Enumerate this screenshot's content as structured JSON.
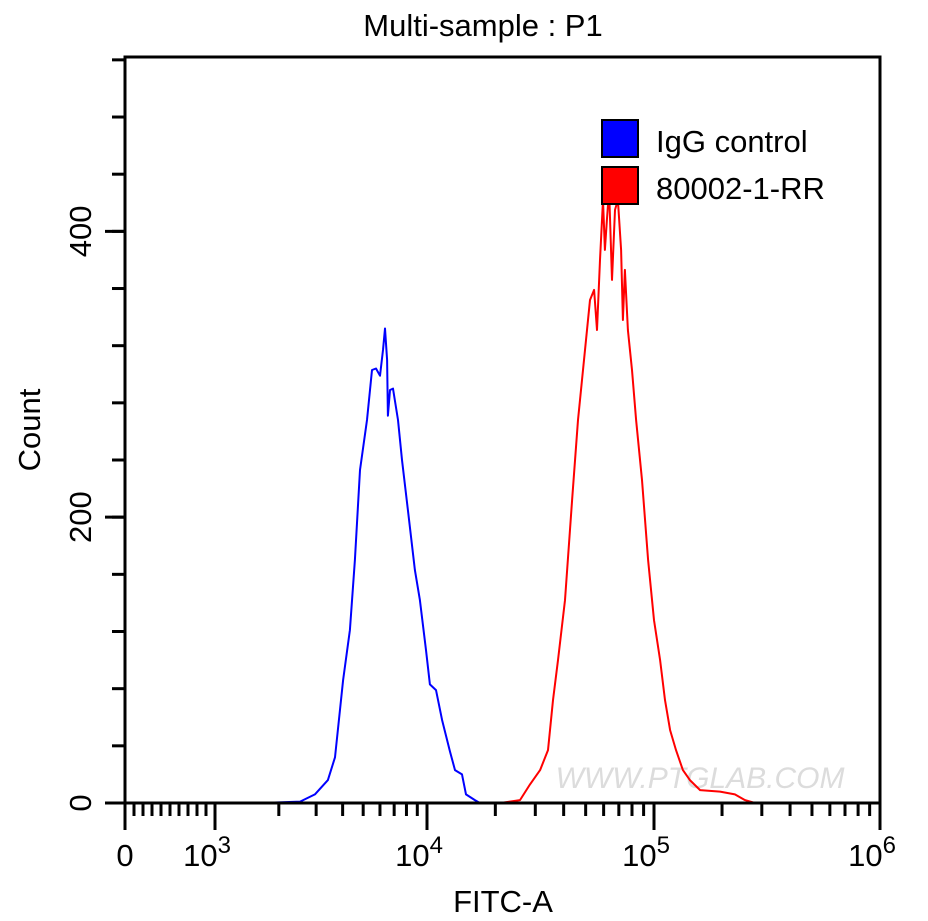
{
  "chart_data": {
    "type": "line",
    "title": "Multi-sample : P1",
    "xlabel": "FITC-A",
    "ylabel": "Count",
    "x_scale": "biexponential (log decades, linear near 0)",
    "xlim": [
      0,
      1000000
    ],
    "ylim": [
      0,
      522
    ],
    "x_ticks": [
      {
        "value": 0,
        "label": "0",
        "sup": ""
      },
      {
        "value": 1000,
        "label": "10",
        "sup": "3"
      },
      {
        "value": 10000,
        "label": "10",
        "sup": "4"
      },
      {
        "value": 100000,
        "label": "10",
        "sup": "5"
      },
      {
        "value": 1000000,
        "label": "10",
        "sup": "6"
      }
    ],
    "y_ticks": [
      {
        "value": 0,
        "label": "0"
      },
      {
        "value": 200,
        "label": "200"
      },
      {
        "value": 400,
        "label": "400"
      }
    ],
    "grid": false,
    "legend_position": "top-right",
    "watermark": "WWW.PTGLAB.COM",
    "series": [
      {
        "name": "IgG control",
        "color": "#0000ff",
        "x": [
          1630,
          2520,
          2960,
          3410,
          3680,
          4020,
          4330,
          4570,
          4830,
          5210,
          5500,
          5750,
          6000,
          6200,
          6340,
          6480,
          6540,
          6690,
          6910,
          7300,
          7620,
          8130,
          8770,
          9260,
          9890,
          10300,
          10960,
          11650,
          12630,
          13280,
          14260,
          14850,
          16260,
          17110
        ],
        "y": [
          0,
          1,
          6,
          16,
          32,
          86,
          121,
          170,
          233,
          268,
          303,
          304,
          299,
          317,
          332,
          310,
          271,
          289,
          290,
          268,
          240,
          205,
          163,
          142,
          107,
          83,
          79,
          58,
          36,
          23,
          20,
          6,
          2,
          0
        ]
      },
      {
        "name": "80002-1-RR",
        "color": "#ff0000",
        "x": [
          20990,
          25690,
          28420,
          31480,
          34120,
          35890,
          37770,
          40550,
          43550,
          46260,
          49170,
          52250,
          54440,
          56110,
          57840,
          59610,
          60800,
          62040,
          63390,
          65310,
          67300,
          69340,
          71610,
          72950,
          74470,
          76740,
          79980,
          83370,
          88510,
          94190,
          100000,
          106400,
          111900,
          117800,
          125100,
          134300,
          144200,
          159900,
          196000,
          228000,
          252800,
          279900
        ],
        "y": [
          0,
          2,
          13,
          23,
          37,
          72,
          100,
          142,
          212,
          268,
          310,
          352,
          359,
          331,
          380,
          422,
          387,
          408,
          429,
          366,
          415,
          422,
          387,
          338,
          373,
          331,
          303,
          268,
          226,
          170,
          128,
          100,
          72,
          51,
          37,
          23,
          16,
          9,
          8,
          6,
          2,
          0
        ]
      }
    ]
  }
}
